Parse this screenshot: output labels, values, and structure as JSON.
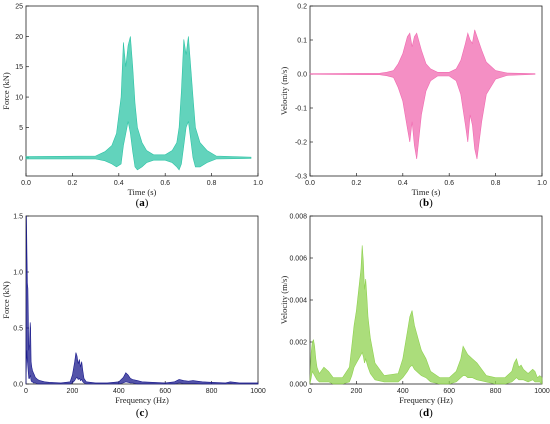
{
  "chart_data": [
    {
      "type": "line",
      "panel_label": "a",
      "xlabel": "Time (s)",
      "ylabel": "Force (kN)",
      "xlim": [
        0.0,
        1.0
      ],
      "ylim": [
        -3,
        25
      ],
      "x_ticks": [
        "0.0",
        "0.2",
        "0.4",
        "0.6",
        "0.8",
        "1.0"
      ],
      "x_tick_values": [
        0.0,
        0.2,
        0.4,
        0.6,
        0.8,
        1.0
      ],
      "y_ticks": [
        "0",
        "5",
        "10",
        "15",
        "20",
        "25"
      ],
      "y_tick_values": [
        0,
        5,
        10,
        15,
        20,
        25
      ],
      "color": "#2ec4a6",
      "series": [
        {
          "x": [
            0.0,
            0.3,
            0.34,
            0.37,
            0.39,
            0.41,
            0.42,
            0.43,
            0.44,
            0.45,
            0.46,
            0.47,
            0.48,
            0.5,
            0.52,
            0.55,
            0.6,
            0.63,
            0.65,
            0.66,
            0.67,
            0.68,
            0.69,
            0.7,
            0.71,
            0.72,
            0.73,
            0.75,
            0.78,
            0.82,
            0.97
          ],
          "upper": [
            0.2,
            0.3,
            1.0,
            2.0,
            4.0,
            10.0,
            19.0,
            15.0,
            18.5,
            20.0,
            15.0,
            9.0,
            5.0,
            2.5,
            1.2,
            0.5,
            0.5,
            1.2,
            2.5,
            5.0,
            11.0,
            19.5,
            17.0,
            20.0,
            15.0,
            10.0,
            5.0,
            2.5,
            1.2,
            0.3,
            0.1
          ],
          "lower": [
            -0.2,
            -0.2,
            -0.5,
            -1.0,
            -1.5,
            -1.0,
            2.0,
            4.0,
            6.0,
            4.0,
            1.0,
            -1.5,
            -2.0,
            -1.5,
            -0.8,
            -0.4,
            -0.4,
            -0.8,
            -1.5,
            -2.0,
            -1.0,
            2.0,
            5.0,
            6.0,
            3.0,
            0.0,
            -1.5,
            -1.5,
            -0.8,
            -0.2,
            -0.1
          ]
        }
      ]
    },
    {
      "type": "line",
      "panel_label": "b",
      "xlabel": "Time (s)",
      "ylabel": "Velocity (m/s)",
      "xlim": [
        0.0,
        1.0
      ],
      "ylim": [
        -0.3,
        0.2
      ],
      "x_ticks": [
        "0.0",
        "0.2",
        "0.4",
        "0.6",
        "0.8",
        "1.0"
      ],
      "x_tick_values": [
        0.0,
        0.2,
        0.4,
        0.6,
        0.8,
        1.0
      ],
      "y_ticks": [
        "-0.3",
        "-0.2",
        "-0.1",
        "0.0",
        "0.1",
        "0.2"
      ],
      "y_tick_values": [
        -0.3,
        -0.2,
        -0.1,
        0.0,
        0.1,
        0.2
      ],
      "color": "#f06ab0",
      "series": [
        {
          "x": [
            0.0,
            0.3,
            0.33,
            0.36,
            0.38,
            0.4,
            0.42,
            0.43,
            0.44,
            0.45,
            0.46,
            0.48,
            0.5,
            0.52,
            0.55,
            0.6,
            0.63,
            0.65,
            0.67,
            0.68,
            0.69,
            0.7,
            0.71,
            0.72,
            0.74,
            0.76,
            0.8,
            0.85,
            0.97
          ],
          "upper": [
            0.001,
            0.002,
            0.005,
            0.01,
            0.03,
            0.06,
            0.11,
            0.12,
            0.08,
            0.11,
            0.12,
            0.07,
            0.03,
            0.015,
            0.005,
            0.005,
            0.015,
            0.04,
            0.09,
            0.12,
            0.1,
            0.09,
            0.13,
            0.11,
            0.07,
            0.035,
            0.01,
            0.003,
            0.001
          ],
          "lower": [
            -0.001,
            -0.002,
            -0.005,
            -0.01,
            -0.04,
            -0.08,
            -0.16,
            -0.2,
            -0.14,
            -0.21,
            -0.25,
            -0.12,
            -0.05,
            -0.02,
            -0.006,
            -0.006,
            -0.02,
            -0.06,
            -0.15,
            -0.2,
            -0.12,
            -0.15,
            -0.22,
            -0.25,
            -0.14,
            -0.06,
            -0.015,
            -0.004,
            -0.001
          ]
        }
      ]
    },
    {
      "type": "line",
      "panel_label": "c",
      "xlabel": "Frequency (Hz)",
      "ylabel": "Force (kN)",
      "xlim": [
        0,
        1000
      ],
      "ylim": [
        0.0,
        1.5
      ],
      "x_ticks": [
        "0",
        "200",
        "400",
        "600",
        "800",
        "1000"
      ],
      "x_tick_values": [
        0,
        200,
        400,
        600,
        800,
        1000
      ],
      "y_ticks": [
        "0.0",
        "0.5",
        "1.0",
        "1.5"
      ],
      "y_tick_values": [
        0.0,
        0.5,
        1.0,
        1.5
      ],
      "color": "#1a1a8c",
      "series": [
        {
          "x": [
            0,
            2,
            4,
            6,
            8,
            10,
            12,
            15,
            18,
            20,
            22,
            25,
            28,
            32,
            36,
            40,
            50,
            60,
            80,
            100,
            150,
            190,
            200,
            210,
            215,
            220,
            225,
            230,
            235,
            240,
            245,
            250,
            260,
            300,
            350,
            400,
            420,
            430,
            440,
            450,
            460,
            480,
            500,
            600,
            640,
            660,
            680,
            700,
            720,
            760,
            800,
            860,
            880,
            900,
            920,
            960,
            1000
          ],
          "upper": [
            0.3,
            1.5,
            1.2,
            0.9,
            0.85,
            0.6,
            0.3,
            0.35,
            0.55,
            0.5,
            0.2,
            0.15,
            0.12,
            0.1,
            0.08,
            0.06,
            0.04,
            0.03,
            0.02,
            0.015,
            0.01,
            0.02,
            0.08,
            0.2,
            0.28,
            0.25,
            0.18,
            0.22,
            0.15,
            0.2,
            0.12,
            0.05,
            0.02,
            0.01,
            0.01,
            0.02,
            0.06,
            0.1,
            0.08,
            0.05,
            0.04,
            0.03,
            0.02,
            0.01,
            0.02,
            0.04,
            0.03,
            0.025,
            0.03,
            0.02,
            0.015,
            0.01,
            0.02,
            0.015,
            0.01,
            0.01,
            0.01
          ],
          "lower": [
            0.0,
            0.2,
            0.3,
            0.2,
            0.15,
            0.1,
            0.05,
            0.05,
            0.08,
            0.06,
            0.03,
            0.02,
            0.02,
            0.01,
            0.01,
            0.01,
            0.0,
            0.0,
            0.0,
            0.0,
            0.0,
            0.0,
            0.01,
            0.03,
            0.05,
            0.06,
            0.04,
            0.05,
            0.03,
            0.04,
            0.02,
            0.01,
            0.0,
            0.0,
            0.0,
            0.0,
            0.01,
            0.02,
            0.015,
            0.01,
            0.01,
            0.0,
            0.0,
            0.0,
            0.0,
            0.01,
            0.005,
            0.005,
            0.005,
            0.0,
            0.0,
            0.0,
            0.005,
            0.0,
            0.0,
            0.0,
            0.0
          ]
        }
      ]
    },
    {
      "type": "line",
      "panel_label": "d",
      "xlabel": "Frequency (Hz)",
      "ylabel": "Velocity (m/s)",
      "xlim": [
        0,
        1000
      ],
      "ylim": [
        0.0,
        0.008
      ],
      "x_ticks": [
        "0",
        "200",
        "400",
        "600",
        "800",
        "1000"
      ],
      "x_tick_values": [
        0,
        200,
        400,
        600,
        800,
        1000
      ],
      "y_ticks": [
        "0.000",
        "0.002",
        "0.004",
        "0.006",
        "0.008"
      ],
      "y_tick_values": [
        0.0,
        0.002,
        0.004,
        0.006,
        0.008
      ],
      "color": "#8fd14f",
      "series": [
        {
          "x": [
            0,
            5,
            10,
            15,
            20,
            25,
            30,
            40,
            60,
            80,
            100,
            140,
            170,
            180,
            190,
            200,
            210,
            220,
            225,
            230,
            235,
            240,
            245,
            250,
            260,
            280,
            320,
            380,
            400,
            420,
            430,
            440,
            450,
            460,
            470,
            480,
            500,
            520,
            560,
            600,
            630,
            650,
            660,
            670,
            680,
            700,
            720,
            760,
            800,
            840,
            870,
            880,
            890,
            900,
            910,
            920,
            940,
            960,
            970,
            980,
            990,
            1000
          ],
          "upper": [
            0.0002,
            0.0015,
            0.002,
            0.0021,
            0.0018,
            0.0012,
            0.0008,
            0.0005,
            0.0008,
            0.0006,
            0.0003,
            0.0003,
            0.0008,
            0.0018,
            0.0028,
            0.0035,
            0.0045,
            0.0055,
            0.0066,
            0.0058,
            0.0045,
            0.005,
            0.0042,
            0.0032,
            0.0022,
            0.001,
            0.0004,
            0.0005,
            0.0012,
            0.0025,
            0.0032,
            0.0035,
            0.0028,
            0.0024,
            0.002,
            0.0016,
            0.0012,
            0.0006,
            0.0003,
            0.0003,
            0.0006,
            0.0012,
            0.0018,
            0.0016,
            0.0014,
            0.0012,
            0.001,
            0.0004,
            0.0003,
            0.0003,
            0.0006,
            0.001,
            0.0012,
            0.0008,
            0.0009,
            0.0007,
            0.0005,
            0.0007,
            0.0006,
            0.0003,
            0.0004,
            0.0003
          ],
          "lower": [
            0.0,
            0.0003,
            0.0006,
            0.0005,
            0.0004,
            0.0003,
            0.0002,
            0.0001,
            0.0001,
            0.0001,
            0.0,
            0.0,
            0.0001,
            0.0004,
            0.0008,
            0.001,
            0.0012,
            0.0014,
            0.0015,
            0.0013,
            0.001,
            0.0012,
            0.001,
            0.0008,
            0.0005,
            0.0002,
            0.0001,
            0.0001,
            0.0003,
            0.0006,
            0.0008,
            0.0009,
            0.0007,
            0.0006,
            0.0005,
            0.0004,
            0.0003,
            0.0001,
            0.0,
            0.0,
            0.0001,
            0.0003,
            0.0004,
            0.0004,
            0.0003,
            0.0003,
            0.0002,
            0.0001,
            0.0,
            0.0,
            0.0001,
            0.0002,
            0.0003,
            0.0002,
            0.0002,
            0.0002,
            0.0001,
            0.0002,
            0.0001,
            0.0001,
            0.0001,
            0.0
          ]
        }
      ]
    }
  ]
}
